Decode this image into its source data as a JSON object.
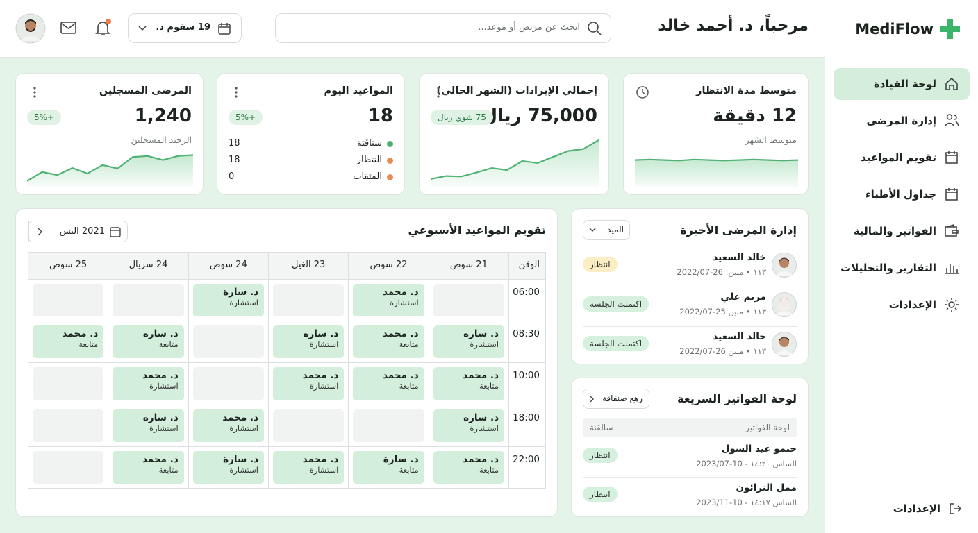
{
  "sidebar": {
    "brand": "MediFlow",
    "nav": [
      "لوحة القيادة",
      "إدارة المرضى",
      "تقويم المواعيد",
      "جداول الأطباء",
      "الفواتير والمالية",
      "التقارير والتحليلات",
      "الإعدادات"
    ],
    "footer": "الإعدادات"
  },
  "header": {
    "greeting": "مرحباً، د. أحمد خالد",
    "search_placeholder": "ابحث عن مريض أو موعد...",
    "date": "19 سقوم د."
  },
  "stats": [
    {
      "title": "متوسط مدة الانتظار",
      "value": "12 دقيقة",
      "subtitle": "متوسط الشهر",
      "trend": [
        52,
        53,
        52,
        51,
        53,
        52,
        51,
        52,
        53,
        52,
        51,
        52
      ]
    },
    {
      "title": "إجمالي الإيرادات (الشهر الحالي)",
      "value": "75,000 ريال",
      "badge": "75 شوي ريال",
      "trend": [
        14,
        20,
        19,
        27,
        36,
        32,
        50,
        46,
        58,
        70,
        74,
        92
      ]
    },
    {
      "title": "المواعيد اليوم",
      "value": "18",
      "badge": "+5%",
      "items": [
        {
          "label": "ستاقتة",
          "count": 18,
          "color": "#4caf6e"
        },
        {
          "label": "النتظار",
          "count": 18,
          "color": "#ec8a55"
        },
        {
          "label": "المثقات",
          "count": 0,
          "color": "#ec8a55"
        }
      ]
    },
    {
      "title": "المرضى المسجلين",
      "value": "1,240",
      "badge": "+5%",
      "subtitle": "الرحيد المسجلين",
      "trend": [
        10,
        28,
        22,
        36,
        25,
        42,
        35,
        58,
        60,
        52,
        60,
        62
      ]
    }
  ],
  "calendar": {
    "title": "تقويم المواعيد الأسبوعي",
    "period": "2021 اليس",
    "time_header": "الوقن",
    "days": [
      "21 سوص",
      "22 سوص",
      "23 الغيل",
      "24 سوص",
      "24 سريال",
      "25 سوص"
    ],
    "rows": [
      {
        "time": "06:00",
        "cells": [
          null,
          {
            "doctor": "د. محمد",
            "type": "استشارة"
          },
          null,
          {
            "doctor": "د. سارة",
            "type": "استشارة"
          },
          null,
          null
        ]
      },
      {
        "time": "08:30",
        "cells": [
          {
            "doctor": "د. سارة",
            "type": "استشارة"
          },
          {
            "doctor": "د. محمد",
            "type": "متابعة"
          },
          {
            "doctor": "د. سارة",
            "type": "استشارة"
          },
          null,
          {
            "doctor": "د. سارة",
            "type": "متابعة"
          },
          {
            "doctor": "د. محمد",
            "type": "متابعة"
          }
        ]
      },
      {
        "time": "10:00",
        "cells": [
          {
            "doctor": "د. محمد",
            "type": "متابعة"
          },
          {
            "doctor": "د. محمد",
            "type": "متابعة"
          },
          {
            "doctor": "د. محمد",
            "type": "استشارة"
          },
          null,
          {
            "doctor": "د. محمد",
            "type": "استشارة"
          },
          null
        ]
      },
      {
        "time": "18:00",
        "cells": [
          {
            "doctor": "د. سارة",
            "type": "استشارة"
          },
          null,
          null,
          {
            "doctor": "د. محمد",
            "type": "استشارة"
          },
          {
            "doctor": "د. سارة",
            "type": "استشارة"
          },
          null
        ]
      },
      {
        "time": "22:00",
        "cells": [
          {
            "doctor": "د. محمد",
            "type": "متابعة"
          },
          {
            "doctor": "د. سارة",
            "type": "متابعة"
          },
          {
            "doctor": "د. محمد",
            "type": "استشارة"
          },
          {
            "doctor": "د. سارة",
            "type": "استشارة"
          },
          {
            "doctor": "د. محمد",
            "type": "متابعة"
          },
          null
        ]
      }
    ]
  },
  "recent_patients": {
    "title": "إدارة المرضى الأخيرة",
    "filter": "الميد",
    "items": [
      {
        "name": "خالد السعيد",
        "meta": "١١٣ • مبين: 26-2022/07",
        "status": "انتظار",
        "status_color": "#fbeec4"
      },
      {
        "name": "مريم علي",
        "meta": "١١٣ • مبين 25-2022/07",
        "status": "اكتملت الجلسة",
        "status_color": "#d5f0dc"
      },
      {
        "name": "خالد السعيد",
        "meta": "١١٣ • مبين 26-2022/07",
        "status": "اكتملت الجلسة",
        "status_color": "#d5f0dc"
      }
    ]
  },
  "invoices": {
    "title": "لوحة الفواتير السريعة",
    "button": "رهع صنفاقة",
    "columns": [
      "لوحة الفواتير",
      "سالقنة"
    ],
    "items": [
      {
        "name": "حنمو عيد السول",
        "meta": "الساس ١٤:٢٠ - 10-2023/07",
        "status": "انتظار"
      },
      {
        "name": "ممل النرائون",
        "meta": "الساس ١٤:١٧ - 10-2023/11",
        "status": "انتظار"
      }
    ]
  }
}
